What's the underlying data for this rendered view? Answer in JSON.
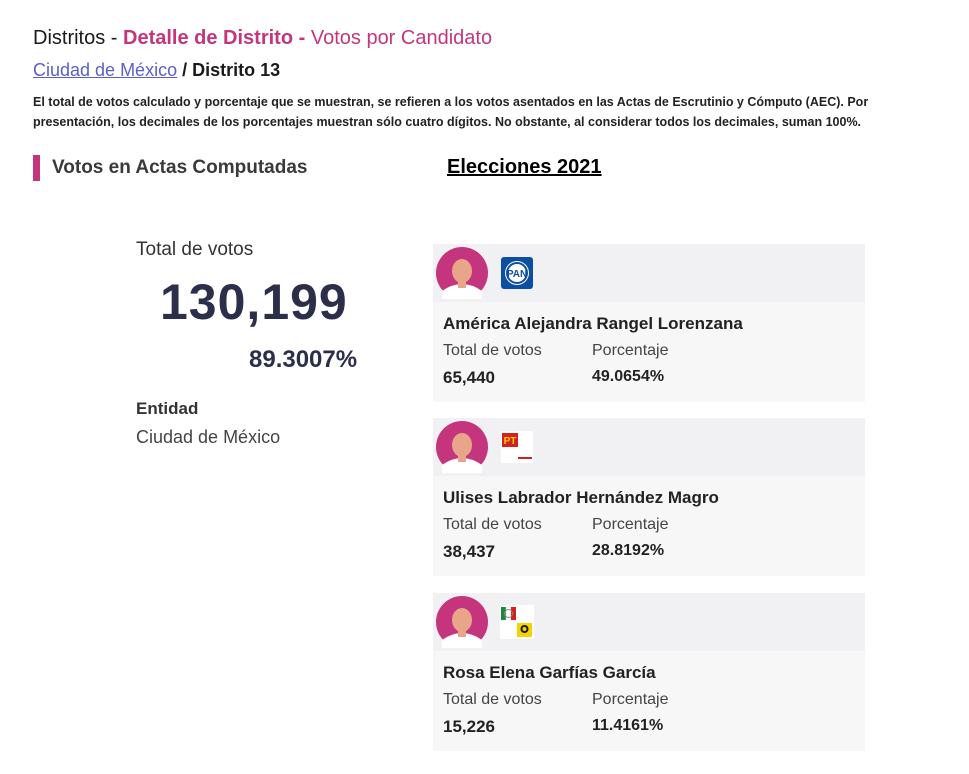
{
  "header": {
    "districts": "Distritos",
    "sep1": " - ",
    "detail": "Detalle de Distrito",
    "sep2": " - ",
    "votes_by_candidate": "Votos por Candidato"
  },
  "breadcrumb": {
    "entity_link": "Ciudad de México",
    "separator": " / ",
    "current": "Distrito 13"
  },
  "note": "El total de votos calculado y porcentaje que se muestran, se refieren a los votos asentados en las Actas de Escrutinio y Cómputo (AEC). Por presentación, los decimales de los porcentajes muestran sólo cuatro dígitos. No obstante, al considerar todos los decimales, suman 100%.",
  "section": {
    "title": "Votos en Actas Computadas",
    "elections": "Elecciones 2021"
  },
  "summary": {
    "total_label": "Total de votos",
    "total_value": "130,199",
    "percentage": "89.3007%",
    "entity_label": "Entidad",
    "entity_value": "Ciudad de México"
  },
  "candidates": [
    {
      "name": "América Alejandra Rangel Lorenzana",
      "votes_label": "Total de votos",
      "pct_label": "Porcentaje",
      "votes": "65,440",
      "percentage": "49.0654%",
      "party_icon": "pan-logo-icon"
    },
    {
      "name": "Ulises Labrador Hernández Magro",
      "votes_label": "Total de votos",
      "pct_label": "Porcentaje",
      "votes": "38,437",
      "percentage": "28.8192%",
      "party_icon": "pt-logo-icon"
    },
    {
      "name": "Rosa Elena Garfías García",
      "votes_label": "Total de votos",
      "pct_label": "Porcentaje",
      "votes": "15,226",
      "percentage": "11.4161%",
      "party_icon": "pri-prd-coalition-icon"
    }
  ],
  "colors": {
    "accent": "#c4357e",
    "link": "#5a60c8",
    "number": "#2c2f4a",
    "pan_blue": "#0b4ea2",
    "pt_red": "#d6201f"
  }
}
